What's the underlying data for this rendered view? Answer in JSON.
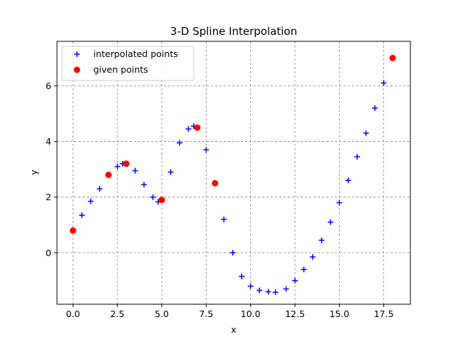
{
  "chart_data": {
    "type": "scatter",
    "title": "3-D Spline Interpolation",
    "xlabel": "x",
    "ylabel": "y",
    "xlim": [
      -0.9,
      19.0
    ],
    "ylim": [
      -1.85,
      7.6
    ],
    "xticks": [
      0.0,
      2.5,
      5.0,
      7.5,
      10.0,
      12.5,
      15.0,
      17.5
    ],
    "xtick_labels": [
      "0.0",
      "2.5",
      "5.0",
      "7.5",
      "10.0",
      "12.5",
      "15.0",
      "17.5"
    ],
    "yticks": [
      0,
      2,
      4,
      6
    ],
    "ytick_labels": [
      "0",
      "2",
      "4",
      "6"
    ],
    "grid": true,
    "legend_position": "top-left",
    "series": [
      {
        "name": "interpolated points",
        "marker": "+",
        "color": "#0000ff",
        "x": [
          0.0,
          0.5,
          1.0,
          1.5,
          2.0,
          2.5,
          2.8,
          3.0,
          3.5,
          4.0,
          4.5,
          4.8,
          5.0,
          5.5,
          6.0,
          6.5,
          6.8,
          7.0,
          7.5,
          8.0,
          8.5,
          9.0,
          9.5,
          10.0,
          10.5,
          11.0,
          11.4,
          12.0,
          12.5,
          13.0,
          13.5,
          14.0,
          14.5,
          15.0,
          15.5,
          16.0,
          16.5,
          17.0,
          17.5,
          18.0
        ],
        "y": [
          0.8,
          1.35,
          1.85,
          2.3,
          2.8,
          3.1,
          3.2,
          3.2,
          2.95,
          2.45,
          2.0,
          1.83,
          1.9,
          2.9,
          3.95,
          4.45,
          4.55,
          4.5,
          3.7,
          2.5,
          1.2,
          0.0,
          -0.85,
          -1.2,
          -1.35,
          -1.4,
          -1.42,
          -1.3,
          -1.0,
          -0.6,
          -0.15,
          0.45,
          1.1,
          1.8,
          2.6,
          3.45,
          4.3,
          5.2,
          6.1,
          7.0
        ]
      },
      {
        "name": "given points",
        "marker": "o",
        "color": "#ff0000",
        "x": [
          0,
          2,
          3,
          5,
          7,
          8,
          18
        ],
        "y": [
          0.8,
          2.8,
          3.2,
          1.9,
          4.5,
          2.5,
          7.0
        ]
      }
    ]
  }
}
